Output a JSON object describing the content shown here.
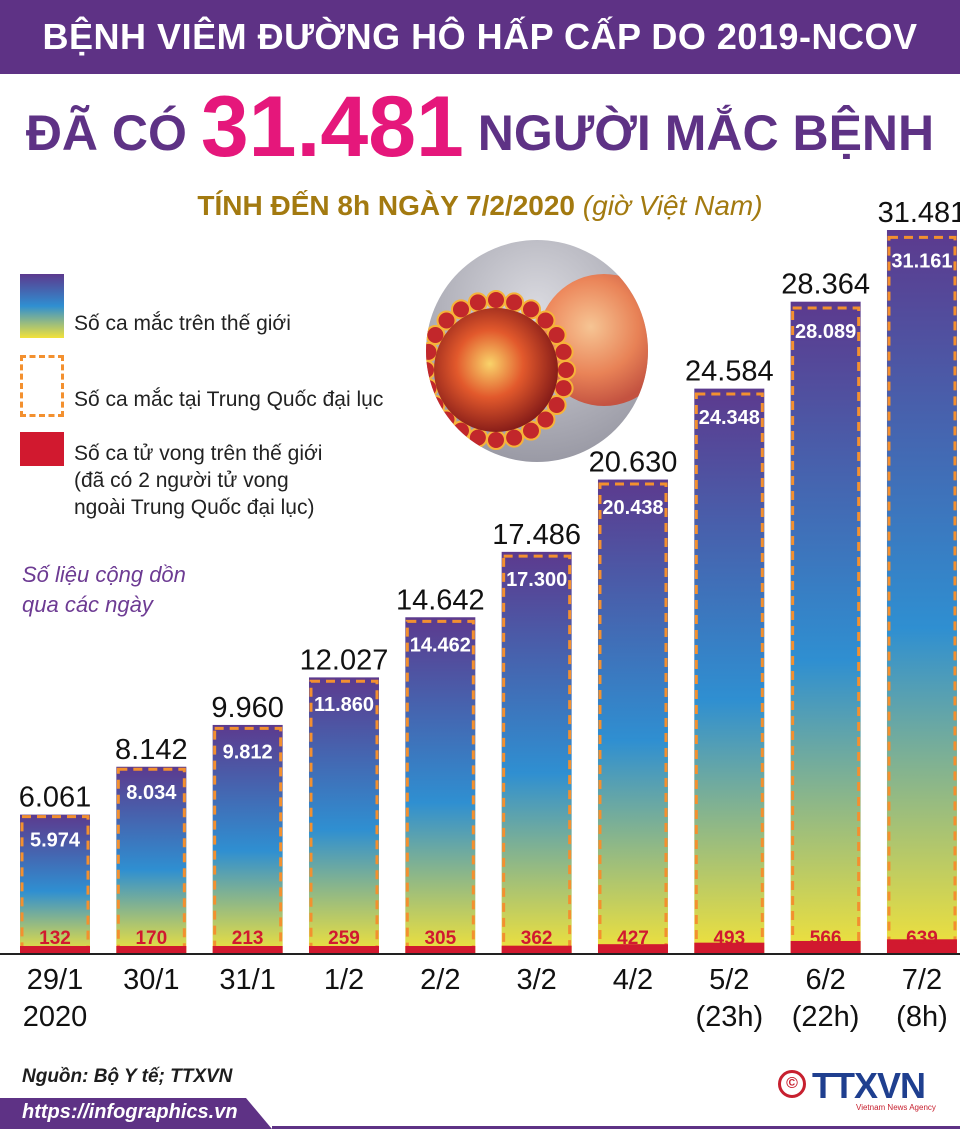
{
  "banner": {
    "title": "BỆNH VIÊM ĐƯỜNG HÔ HẤP CẤP DO 2019-NCOV"
  },
  "headline": {
    "prefix": "ĐÃ CÓ",
    "number": "31.481",
    "suffix": "NGƯỜI MẮC BỆNH"
  },
  "subtitle": {
    "strong": "TÍNH ĐẾN 8h NGÀY 7/2/2020",
    "italic": "(giờ Việt Nam)"
  },
  "legend": {
    "world": "Số ca mắc trên thế giới",
    "china": "Số ca mắc tại Trung Quốc đại lục",
    "deaths": "Số ca tử vong trên thế giới",
    "deaths_note_1": "(đã có 2 người tử vong",
    "deaths_note_2": "ngoài Trung Quốc đại lục)"
  },
  "cumulative_note": "Số liệu cộng dồn qua các ngày",
  "source": "Nguồn: Bộ Y tế; TTXVN",
  "footer": {
    "url": "https://infographics.vn",
    "copyright": "©",
    "logo_text": "TTXVN",
    "logo_sub": "Vietnam News Agency"
  },
  "colors": {
    "brand_purple": "#5e3285",
    "headline_pink": "#e5177b",
    "subtitle_gold": "#a37a10",
    "china_dash": "#f3902f",
    "death_red": "#d1192f",
    "gradient_top": "#5c3a8e",
    "gradient_mid": "#2f8fd1",
    "gradient_bottom": "#f2e23a"
  },
  "chart_data": {
    "type": "bar",
    "categories": [
      [
        "29/1",
        "2020"
      ],
      [
        "30/1"
      ],
      [
        "31/1"
      ],
      [
        "1/2"
      ],
      [
        "2/2"
      ],
      [
        "3/2"
      ],
      [
        "4/2"
      ],
      [
        "5/2",
        "(23h)"
      ],
      [
        "6/2",
        "(22h)"
      ],
      [
        "7/2",
        "(8h)"
      ]
    ],
    "series": [
      {
        "name": "Số ca mắc trên thế giới",
        "values": [
          6061,
          8142,
          9960,
          12027,
          14642,
          17486,
          20630,
          24584,
          28364,
          31481
        ],
        "labels": [
          "6.061",
          "8.142",
          "9.960",
          "12.027",
          "14.642",
          "17.486",
          "20.630",
          "24.584",
          "28.364",
          "31.481"
        ]
      },
      {
        "name": "Số ca mắc tại Trung Quốc đại lục",
        "values": [
          5974,
          8034,
          9812,
          11860,
          14462,
          17300,
          20438,
          24348,
          28089,
          31161
        ],
        "labels": [
          "5.974",
          "8.034",
          "9.812",
          "11.860",
          "14.462",
          "17.300",
          "20.438",
          "24.348",
          "28.089",
          "31.161"
        ]
      },
      {
        "name": "Số ca tử vong trên thế giới",
        "values": [
          132,
          170,
          213,
          259,
          305,
          362,
          427,
          493,
          566,
          639
        ],
        "labels": [
          "132",
          "170",
          "213",
          "259",
          "305",
          "362",
          "427",
          "493",
          "566",
          "639"
        ]
      }
    ],
    "ylim": [
      0,
      31481
    ]
  }
}
